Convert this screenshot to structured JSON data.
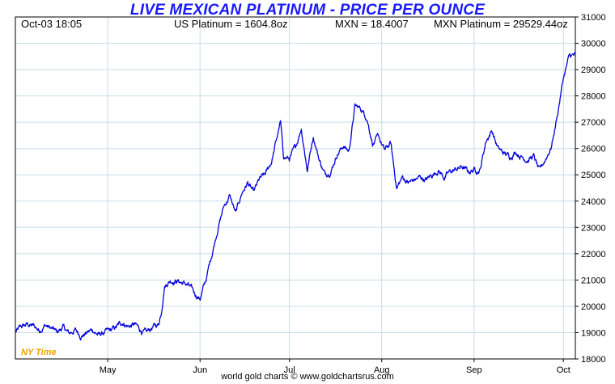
{
  "header": {
    "date_time": "Oct-03  18:05",
    "us_price": "US Platinum = 1604.8oz",
    "fx_rate": "MXN = 18.4007",
    "local_price": "MXN Platinum = 29529.44oz"
  },
  "footer": {
    "credit": "world gold charts © www.goldchartsrus.com",
    "timezone": "NY Time"
  },
  "colors": {
    "line": "#0000dd",
    "title": "#1a1aff",
    "grid": "#c8dce8",
    "timezone": "#f0a000"
  },
  "chart_data": {
    "type": "line",
    "title": "LIVE MEXICAN PLATINUM - PRICE PER OUNCE",
    "xlabel": "",
    "ylabel": "",
    "ylim": [
      18000,
      31000
    ],
    "grid": true,
    "y_ticks": [
      18000,
      19000,
      20000,
      21000,
      22000,
      23000,
      24000,
      25000,
      26000,
      27000,
      28000,
      29000,
      30000,
      31000
    ],
    "x_ticks": [
      "May",
      "Jun",
      "Jul",
      "Aug",
      "Sep",
      "Oct"
    ],
    "x_tick_days": [
      31,
      62,
      92,
      123,
      154,
      184
    ],
    "x_range_days": [
      0,
      188
    ],
    "series": [
      {
        "x": [
          0,
          2,
          4,
          6,
          8,
          10,
          12,
          14,
          16,
          18,
          20,
          22,
          24,
          26,
          28,
          30,
          32,
          34,
          36,
          38,
          40,
          42,
          44,
          46,
          48,
          49,
          50,
          52,
          54,
          56,
          58,
          60,
          62,
          64,
          66,
          68,
          70,
          72,
          74,
          76,
          78,
          80,
          82,
          84,
          86,
          88,
          89,
          90,
          92,
          94,
          96,
          98,
          100,
          102,
          104,
          106,
          108,
          110,
          112,
          114,
          116,
          118,
          120,
          122,
          124,
          126,
          128,
          130,
          132,
          134,
          136,
          138,
          140,
          142,
          144,
          146,
          148,
          150,
          152,
          154,
          156,
          158,
          160,
          162,
          164,
          166,
          168,
          170,
          172,
          174,
          176,
          178,
          180,
          182,
          184,
          186,
          188
        ],
        "y": [
          19000,
          19200,
          19300,
          19250,
          19100,
          19300,
          19150,
          19000,
          19200,
          18950,
          19100,
          18900,
          19000,
          19100,
          18900,
          19000,
          19050,
          19200,
          19400,
          19250,
          19300,
          19100,
          18950,
          19200,
          19300,
          19800,
          20800,
          21000,
          21000,
          20900,
          20800,
          20500,
          20300,
          21000,
          22000,
          23000,
          23800,
          24200,
          23500,
          24300,
          24700,
          24300,
          24800,
          25000,
          25500,
          26500,
          27000,
          25700,
          25600,
          26000,
          26800,
          25200,
          26500,
          25600,
          25000,
          25200,
          25800,
          26100,
          25900,
          27600,
          27500,
          27200,
          26200,
          26400,
          25900,
          26200,
          24500,
          24900,
          24700,
          24800,
          24900,
          24800,
          25000,
          25200,
          24900,
          25100,
          25200,
          25300,
          25100,
          25200,
          25200,
          26300,
          26700,
          26000,
          25800,
          25700,
          25900,
          25700,
          25600,
          25700,
          25100,
          25600,
          26100,
          27300,
          28700,
          29500,
          29530
        ]
      }
    ]
  }
}
